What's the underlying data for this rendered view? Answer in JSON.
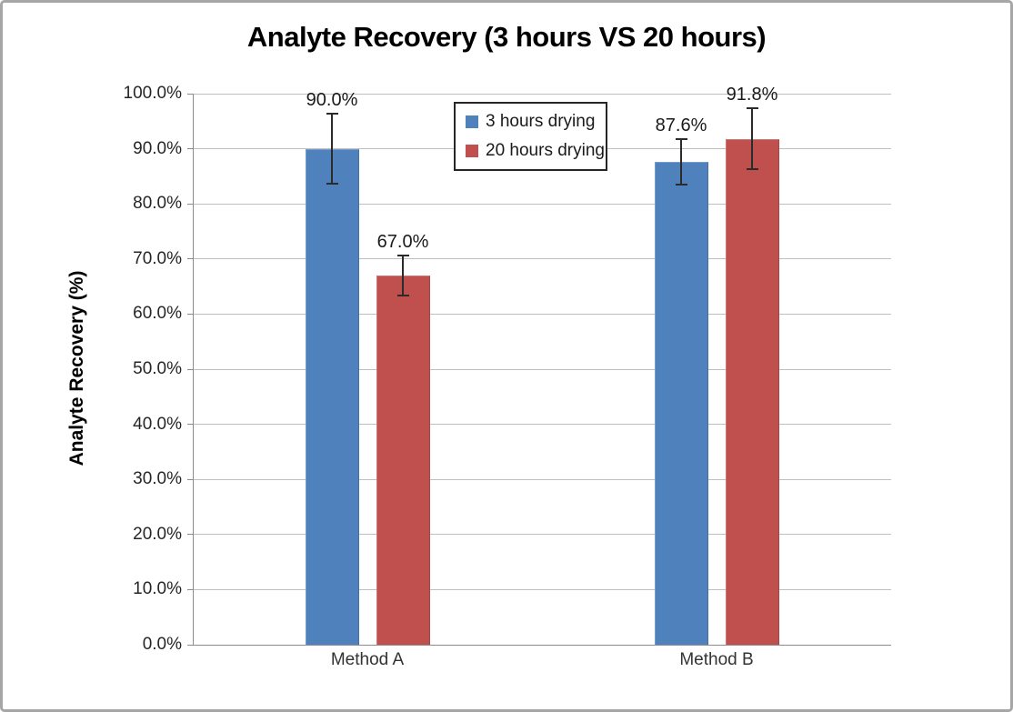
{
  "frame": {
    "background_color": "#FFFFFF",
    "border_color": "#A6A6A6"
  },
  "chart_data": {
    "type": "bar",
    "title": "Analyte Recovery (3 hours VS 20 hours)",
    "ylabel": "Analyte Recovery (%)",
    "xlabel": "",
    "categories": [
      "Method A",
      "Method B"
    ],
    "series": [
      {
        "name": "3 hours drying",
        "color": "#4F81BD",
        "values": [
          90.0,
          87.6
        ],
        "error_bars": [
          6.3,
          4.1
        ],
        "data_labels": [
          "90.0%",
          "87.6%"
        ]
      },
      {
        "name": "20 hours drying",
        "color": "#C0504D",
        "values": [
          67.0,
          91.8
        ],
        "error_bars": [
          3.7,
          5.5
        ],
        "data_labels": [
          "67.0%",
          "91.8%"
        ]
      }
    ],
    "ylim": [
      0,
      100
    ],
    "ytick_step": 10,
    "ytick_labels": [
      "0.0%",
      "10.0%",
      "20.0%",
      "30.0%",
      "40.0%",
      "50.0%",
      "60.0%",
      "70.0%",
      "80.0%",
      "90.0%",
      "100.0%"
    ],
    "grid": "horizontal",
    "gridline_color": "#BFBFBF",
    "axis_line_color": "#8C8C8C",
    "error_bar_color": "#2B2B2B",
    "legend_position": "top-center-inside",
    "legend_border_color": "#262626"
  }
}
